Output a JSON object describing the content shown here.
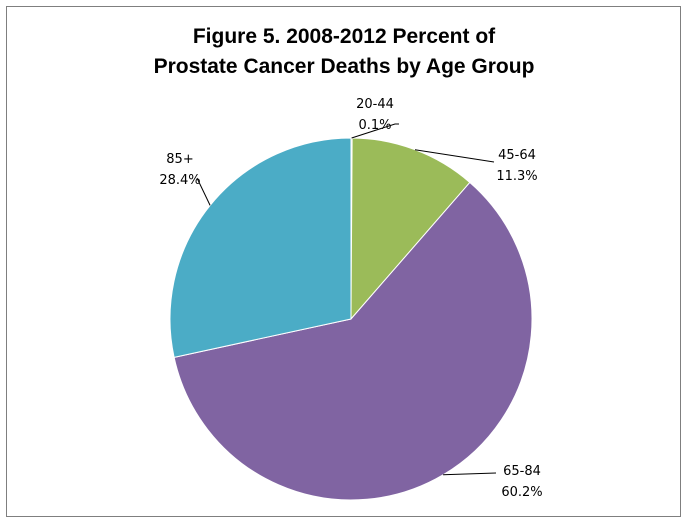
{
  "chart_data": {
    "type": "pie",
    "title_line1": "Figure 5.  2008-2012 Percent of",
    "title_line2": "Prostate Cancer Deaths by Age Group",
    "slices": [
      {
        "label": "20-44",
        "value": 0.1,
        "display": "0.1%",
        "color": "#c0504d"
      },
      {
        "label": "45-64",
        "value": 11.3,
        "display": "11.3%",
        "color": "#9bbb59"
      },
      {
        "label": "65-84",
        "value": 60.2,
        "display": "60.2%",
        "color": "#8064a2"
      },
      {
        "label": "85+",
        "value": 28.4,
        "display": "28.4%",
        "color": "#4bacc6"
      }
    ]
  }
}
